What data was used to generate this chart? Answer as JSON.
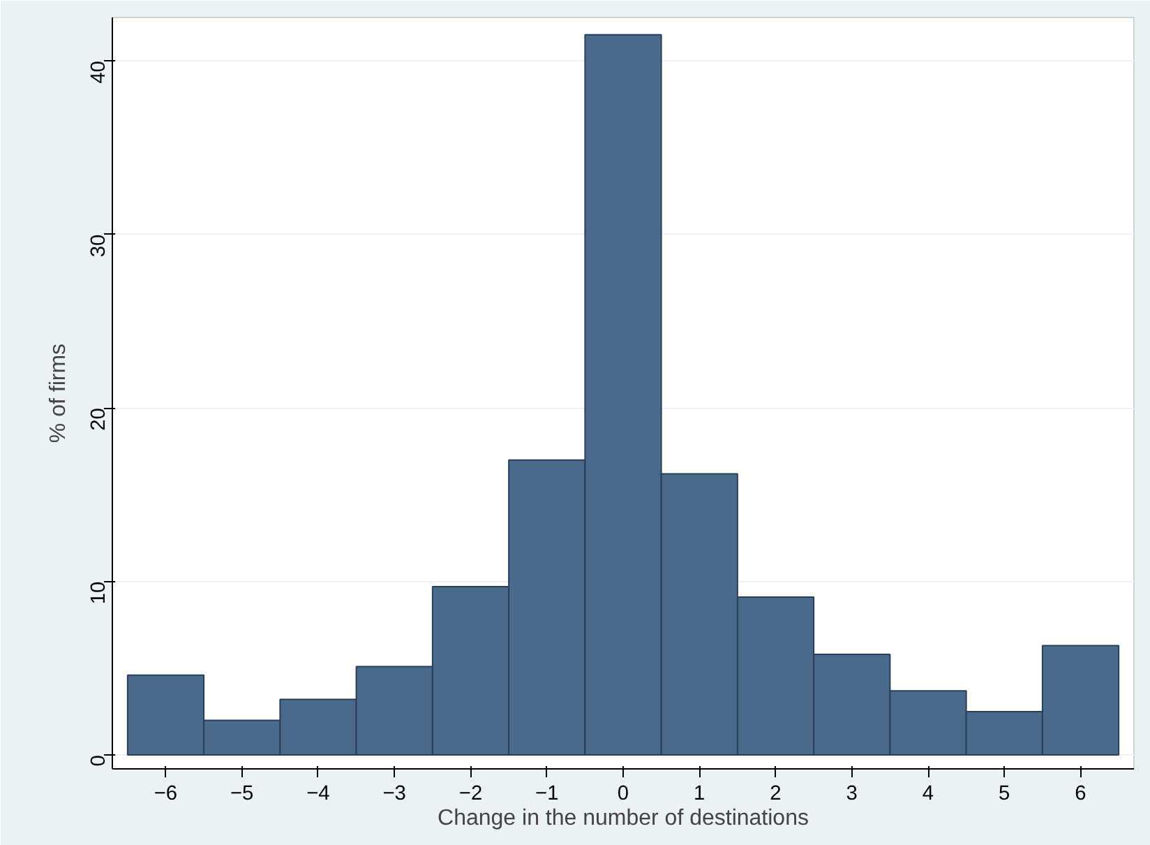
{
  "chart_data": {
    "type": "histogram",
    "xlabel": "Change in the number of destinations",
    "ylabel": "% of firms",
    "bins": [
      -6.5,
      -5.5,
      -4.5,
      -3.5,
      -2.5,
      -1.5,
      -0.5,
      0.5,
      1.5,
      2.5,
      3.5,
      4.5,
      5.5,
      6.5
    ],
    "values": [
      4.6,
      2.0,
      3.2,
      5.1,
      9.7,
      17.0,
      41.5,
      16.2,
      9.1,
      5.8,
      3.7,
      2.5,
      6.3
    ],
    "color": "#486a8c",
    "xlim": [
      -6.7,
      6.7
    ],
    "xticks": [
      -6,
      -5,
      -4,
      -3,
      -2,
      -1,
      0,
      1,
      2,
      3,
      4,
      5,
      6
    ],
    "ylim": [
      -0.8,
      42.5
    ],
    "yticks": [
      0,
      10,
      20,
      30,
      40
    ],
    "grid": "y"
  }
}
